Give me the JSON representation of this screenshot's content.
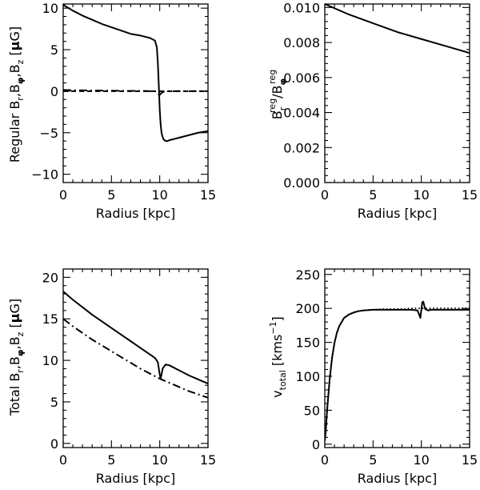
{
  "chart_data": [
    {
      "type": "line",
      "id": "p1",
      "xlabel": "Radius [kpc]",
      "ylabel": "Regular B_r,B_φ,B_z [μG]",
      "ylabel_parts": [
        "Regular B",
        "r",
        ",B",
        "φ",
        ",B",
        "z",
        " [",
        "μ",
        "G]"
      ],
      "xlim": [
        0,
        15
      ],
      "ylim": [
        -11,
        10.5
      ],
      "xticks": [
        0,
        5,
        10,
        15
      ],
      "yticks": [
        -10,
        -5,
        0,
        5,
        10
      ],
      "xtick_labels": [
        "0",
        "5",
        "10",
        "15"
      ],
      "ytick_labels": [
        "−10",
        "−5",
        "0",
        "5",
        "10"
      ],
      "series": [
        {
          "name": "B_phi",
          "style": "solid",
          "x": [
            0,
            1,
            2,
            3,
            4,
            5,
            6,
            7,
            8,
            9,
            9.5,
            9.7,
            9.8,
            9.9,
            10.0,
            10.1,
            10.2,
            10.3,
            10.4,
            10.6,
            10.8,
            11,
            12,
            13,
            14,
            15
          ],
          "y": [
            10.4,
            9.7,
            9.1,
            8.6,
            8.1,
            7.7,
            7.3,
            6.9,
            6.7,
            6.4,
            6.1,
            5.3,
            3.5,
            0.8,
            -2.2,
            -4.1,
            -5.1,
            -5.5,
            -5.8,
            -6.0,
            -6.0,
            -5.9,
            -5.6,
            -5.3,
            -5.0,
            -4.8
          ]
        },
        {
          "name": "B_r",
          "style": "dash-dot",
          "x": [
            0,
            2,
            4,
            6,
            8,
            9.5,
            9.8,
            10.0,
            10.2,
            10.5,
            12,
            15
          ],
          "y": [
            0.15,
            0.1,
            0.08,
            0.05,
            0.03,
            0.0,
            -0.35,
            -0.45,
            -0.2,
            0.0,
            0.0,
            0.0
          ]
        },
        {
          "name": "B_z",
          "style": "dashed",
          "x": [
            0,
            5,
            10,
            15
          ],
          "y": [
            0,
            0,
            0,
            0
          ]
        }
      ]
    },
    {
      "type": "line",
      "id": "p2",
      "xlabel": "Radius [kpc]",
      "ylabel": "B_r^reg / B_φ^reg",
      "ylabel_parts": [
        "B",
        "r",
        "reg",
        "/B",
        "φ",
        "reg"
      ],
      "xlim": [
        0,
        15
      ],
      "ylim": [
        0,
        0.0102
      ],
      "xticks": [
        0,
        5,
        10,
        15
      ],
      "yticks": [
        0,
        0.002,
        0.004,
        0.006,
        0.008,
        0.01
      ],
      "xtick_labels": [
        "0",
        "5",
        "10",
        "15"
      ],
      "ytick_labels": [
        "0.000",
        "0.002",
        "0.004",
        "0.006",
        "0.008",
        "0.010"
      ],
      "series": [
        {
          "name": "ratio",
          "style": "solid",
          "x": [
            0,
            2.5,
            5,
            7.5,
            10,
            12.5,
            15
          ],
          "y": [
            0.0102,
            0.0096,
            0.0091,
            0.0086,
            0.0082,
            0.0078,
            0.0074
          ]
        }
      ]
    },
    {
      "type": "line",
      "id": "p3",
      "xlabel": "Radius [kpc]",
      "ylabel": "Total B_r,B_φ,B_z [μG]",
      "ylabel_parts": [
        "Total B",
        "r",
        ",B",
        "φ",
        ",B",
        "z",
        " [",
        "μ",
        "G]"
      ],
      "xlim": [
        0,
        15
      ],
      "ylim": [
        -0.5,
        21
      ],
      "xticks": [
        0,
        5,
        10,
        15
      ],
      "yticks": [
        0,
        5,
        10,
        15,
        20
      ],
      "xtick_labels": [
        "0",
        "5",
        "10",
        "15"
      ],
      "ytick_labels": [
        "0",
        "5",
        "10",
        "15",
        "20"
      ],
      "series": [
        {
          "name": "B_total_phi",
          "style": "solid",
          "x": [
            0,
            1,
            2,
            3,
            4,
            5,
            6,
            7,
            8,
            9,
            9.5,
            9.8,
            10.0,
            10.1,
            10.3,
            10.6,
            11,
            12,
            13,
            14,
            15
          ],
          "y": [
            18.3,
            17.3,
            16.4,
            15.5,
            14.7,
            13.9,
            13.1,
            12.3,
            11.5,
            10.7,
            10.3,
            9.8,
            8.3,
            7.8,
            9.0,
            9.5,
            9.4,
            8.8,
            8.2,
            7.7,
            7.2
          ]
        },
        {
          "name": "B_total_r",
          "style": "dash-dot",
          "x": [
            0,
            1,
            2,
            3,
            4,
            5,
            6,
            7,
            8,
            9,
            10,
            11,
            12,
            13,
            14,
            15
          ],
          "y": [
            15.0,
            14.1,
            13.3,
            12.5,
            11.8,
            11.1,
            10.4,
            9.7,
            9.0,
            8.4,
            7.8,
            7.3,
            6.8,
            6.3,
            5.9,
            5.5
          ]
        }
      ]
    },
    {
      "type": "line",
      "id": "p4",
      "xlabel": "Radius [kpc]",
      "ylabel": "v_total [kms^-1]",
      "ylabel_parts": [
        "v",
        "total",
        " [kms",
        "−1",
        "]"
      ],
      "xlim": [
        0,
        15
      ],
      "ylim": [
        -5,
        258
      ],
      "xticks": [
        0,
        5,
        10,
        15
      ],
      "yticks": [
        0,
        50,
        100,
        150,
        200,
        250
      ],
      "xtick_labels": [
        "0",
        "5",
        "10",
        "15"
      ],
      "ytick_labels": [
        "0",
        "50",
        "100",
        "150",
        "200",
        "250"
      ],
      "series": [
        {
          "name": "v_total",
          "style": "solid",
          "x": [
            0,
            0.1,
            0.25,
            0.5,
            0.75,
            1.0,
            1.25,
            1.5,
            2.0,
            2.5,
            3,
            3.5,
            4,
            5,
            6,
            7,
            8,
            9,
            9.6,
            9.8,
            9.9,
            10.0,
            10.1,
            10.2,
            10.4,
            10.7,
            11,
            12,
            13,
            14,
            15
          ],
          "y": [
            5,
            20,
            52,
            95,
            127,
            149,
            164,
            174,
            186,
            191,
            194,
            196,
            197,
            198,
            198,
            198,
            198,
            198,
            197,
            190,
            186,
            198,
            209,
            210,
            199,
            197,
            198,
            198,
            198,
            198,
            198
          ]
        },
        {
          "name": "v_rot",
          "style": "dotted",
          "x": [
            0,
            0.1,
            0.25,
            0.5,
            0.75,
            1.0,
            1.25,
            1.5,
            2.0,
            2.5,
            3,
            3.5,
            4,
            5,
            6,
            7,
            8,
            9,
            10,
            11,
            12,
            13,
            14,
            15
          ],
          "y": [
            5,
            20,
            52,
            95,
            127,
            149,
            164,
            174,
            186,
            191,
            194,
            196,
            197,
            198,
            199,
            199,
            199,
            200,
            200,
            200,
            200,
            200,
            200,
            200
          ]
        }
      ]
    }
  ]
}
